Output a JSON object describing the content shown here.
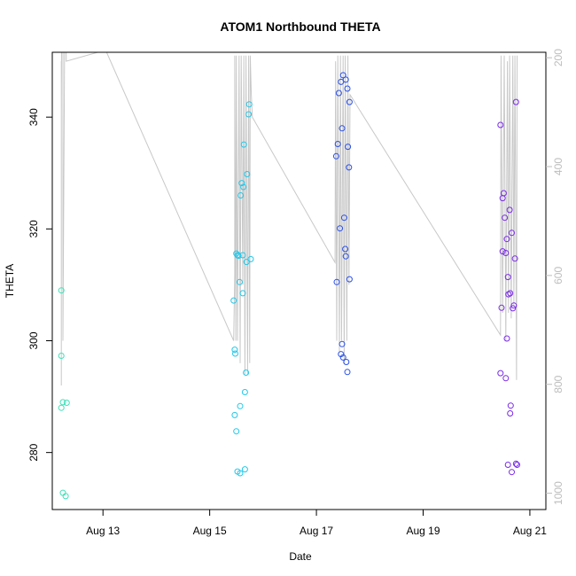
{
  "chart_data": {
    "type": "scatter",
    "title": "ATOM1 Northbound THETA",
    "xlabel": "Date",
    "ylabel": "THETA",
    "x_tick_labels": [
      "Aug 13",
      "Aug 15",
      "Aug 17",
      "Aug 19",
      "Aug 21"
    ],
    "x_tick_values": [
      13,
      15,
      17,
      19,
      21
    ],
    "xlim": [
      12.05,
      21.3
    ],
    "y_tick_labels": [
      "280",
      "300",
      "320",
      "340"
    ],
    "y_tick_values": [
      280,
      300,
      320,
      340
    ],
    "ylim": [
      269.8,
      351.6
    ],
    "y2_tick_labels": [
      "200",
      "400",
      "600",
      "800",
      "1000"
    ],
    "y2_tick_values": [
      200,
      400,
      600,
      800,
      1000
    ],
    "y2lim": [
      1030,
      190
    ],
    "colors": {
      "aug12": "#40e0b8",
      "aug15": "#22c8ea",
      "aug17": "#2a50e8",
      "aug20": "#7a2ae8",
      "line": "#c8c8c8",
      "right_axis": "#bdbdbd"
    },
    "series": [
      {
        "color_key": "aug12",
        "x": [
          12.22,
          12.22,
          12.22,
          12.25,
          12.25,
          12.3,
          12.32
        ],
        "y": [
          309,
          297.3,
          288,
          289,
          272.8,
          272.2,
          288.9
        ]
      },
      {
        "color_key": "aug15",
        "x": [
          15.45,
          15.47,
          15.48,
          15.5,
          15.52,
          15.54,
          15.56,
          15.57,
          15.58,
          15.6,
          15.62,
          15.63,
          15.64,
          15.66,
          15.68,
          15.69,
          15.7,
          15.73,
          15.74,
          15.77,
          15.47,
          15.5,
          15.52,
          15.57,
          15.62,
          15.66
        ],
        "y": [
          307.2,
          298.4,
          297.7,
          315.6,
          315.3,
          315.2,
          310.5,
          288.3,
          326.0,
          328.2,
          308.5,
          327.5,
          335.1,
          290.8,
          294.3,
          314.1,
          329.8,
          340.5,
          342.3,
          314.6,
          286.7,
          283.8,
          276.6,
          276.3,
          315.3,
          277.0
        ]
      },
      {
        "color_key": "aug17",
        "x": [
          17.37,
          17.38,
          17.4,
          17.42,
          17.44,
          17.46,
          17.48,
          17.48,
          17.5,
          17.52,
          17.54,
          17.55,
          17.56,
          17.58,
          17.59,
          17.61,
          17.62,
          17.62,
          17.46,
          17.5,
          17.55,
          17.58
        ],
        "y": [
          333.0,
          310.5,
          335.2,
          344.3,
          320.1,
          346.3,
          338.0,
          299.4,
          347.5,
          322.0,
          316.4,
          346.7,
          296.2,
          345.1,
          334.7,
          331.0,
          342.7,
          311.0,
          297.6,
          297.0,
          315.1,
          294.4
        ]
      },
      {
        "color_key": "aug20",
        "x": [
          20.45,
          20.47,
          20.49,
          20.51,
          20.53,
          20.55,
          20.57,
          20.57,
          20.59,
          20.6,
          20.62,
          20.63,
          20.64,
          20.66,
          20.68,
          20.7,
          20.72,
          20.74,
          20.76,
          20.45,
          20.49,
          20.55,
          20.59,
          20.63,
          20.66,
          20.74
        ],
        "y": [
          338.6,
          305.9,
          325.5,
          326.4,
          322.0,
          315.7,
          300.4,
          318.2,
          311.4,
          308.3,
          323.4,
          308.5,
          288.4,
          319.3,
          305.8,
          306.3,
          314.7,
          342.7,
          277.8,
          294.2,
          316.0,
          293.3,
          277.8,
          287.0,
          276.5,
          278.0
        ]
      }
    ]
  }
}
